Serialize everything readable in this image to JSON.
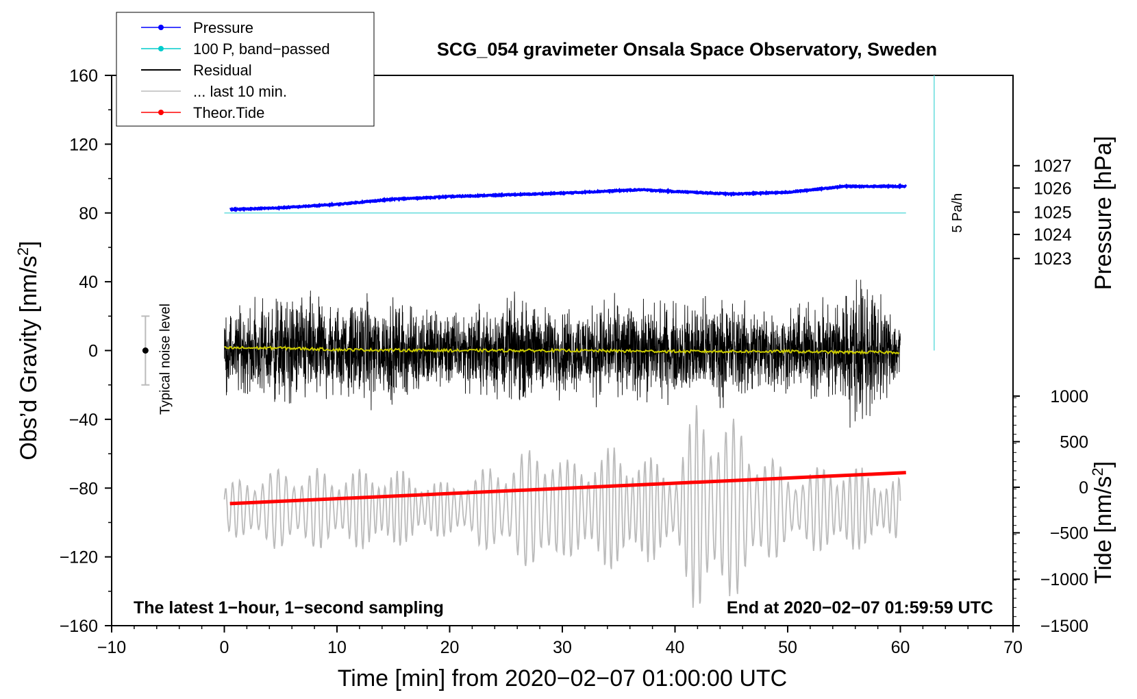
{
  "chart_data": {
    "type": "line",
    "title": "SCG_054 gravimeter Onsala Space Observatory, Sweden",
    "xlabel": "Time [min] from 2020−02−07 01:00:00 UTC",
    "xlim": [
      -10,
      70
    ],
    "xticks": [
      -10,
      0,
      10,
      20,
      30,
      40,
      50,
      60,
      70
    ],
    "xtick_labels": [
      "−10",
      "0",
      "10",
      "20",
      "30",
      "40",
      "50",
      "60",
      "70"
    ],
    "left_axis": {
      "label_main": "Obs’d Gravity [nm/s",
      "label_sup": "2",
      "label_end": "]",
      "lim": [
        -160,
        160
      ],
      "ticks": [
        160,
        120,
        80,
        40,
        0,
        -40,
        -80,
        -120,
        -160
      ],
      "tick_labels": [
        "160",
        "120",
        "80",
        "40",
        "0",
        "−40",
        "−80",
        "−120",
        "−160"
      ]
    },
    "pressure_axis": {
      "label": "Pressure [hPa]",
      "ticks": [
        1027,
        1026,
        1025,
        1024,
        1023
      ],
      "tick_labels": [
        "1027",
        "1026",
        "1025",
        "1024",
        "1023"
      ],
      "gravity_equiv": [
        107.5,
        94.5,
        80.5,
        67.5,
        53.5
      ]
    },
    "tide_axis": {
      "label_main": "Tide [nm/s",
      "label_sup": "2",
      "label_end": "]",
      "ticks": [
        1000,
        500,
        0,
        -500,
        -1000,
        -1500
      ],
      "tick_labels": [
        "1000",
        "500",
        "0",
        "−500",
        "−1000",
        "−1500"
      ],
      "gravity_equiv": [
        -26.5,
        -53,
        -79.5,
        -106,
        -133,
        -160
      ]
    },
    "legend": [
      {
        "label": "Pressure",
        "color": "#0000ff",
        "marker": true
      },
      {
        "label": "100 P, band−passed",
        "color": "#00cccc",
        "marker": true
      },
      {
        "label": "Residual",
        "color": "#000000",
        "marker": false
      },
      {
        "label": "... last 10 min.",
        "color": "#bbbbbb",
        "marker": false
      },
      {
        "label": "Theor.Tide",
        "color": "#ff0000",
        "marker": true
      }
    ],
    "series": [
      {
        "name": "Pressure",
        "color": "#0000ff",
        "x": [
          0.5,
          5,
          10,
          15,
          20,
          25,
          30,
          35,
          37,
          40,
          45,
          50,
          55,
          57,
          60.5
        ],
        "values": [
          82,
          83,
          85,
          88,
          89.5,
          90.5,
          91.5,
          93,
          93.5,
          92.5,
          91,
          92,
          95.5,
          95.5,
          95.5
        ]
      },
      {
        "name": "100 P, band-passed",
        "color": "#66dddd",
        "x": [
          0,
          60.5
        ],
        "values": [
          80,
          80
        ]
      },
      {
        "name": "Residual",
        "color": "#000000",
        "x_range": [
          0,
          60
        ],
        "envelope": {
          "x": [
            0,
            3,
            6,
            10,
            14,
            20,
            25,
            30,
            35,
            40,
            43,
            47,
            50,
            54,
            56,
            57,
            58,
            60
          ],
          "amplitude": [
            28,
            38,
            45,
            35,
            40,
            30,
            38,
            33,
            38,
            35,
            40,
            36,
            30,
            42,
            55,
            60,
            40,
            25
          ]
        }
      },
      {
        "name": "... last 10 min.",
        "color": "#bbbbbb",
        "x_range": [
          0,
          60
        ],
        "baseline": -92,
        "envelope": {
          "x": [
            0,
            3,
            6,
            10,
            14,
            20,
            27,
            29,
            30,
            35,
            40,
            42,
            44,
            46,
            50,
            55,
            58,
            60
          ],
          "amplitude": [
            14,
            22,
            25,
            22,
            25,
            15,
            35,
            42,
            28,
            38,
            25,
            65,
            58,
            48,
            22,
            28,
            20,
            18
          ]
        }
      },
      {
        "name": "Residual smoothed",
        "color": "#cccc00",
        "x": [
          0,
          5,
          10,
          20,
          30,
          40,
          50,
          55,
          60
        ],
        "values": [
          1.5,
          1.5,
          0.5,
          0,
          0,
          -0.5,
          -0.5,
          -1,
          -1
        ]
      },
      {
        "name": "Theor.Tide",
        "color": "#ff0000",
        "x": [
          0.5,
          60.5
        ],
        "values": [
          -89,
          -71
        ]
      }
    ],
    "noise_indicator": {
      "label": "Typical noise level",
      "x": -7,
      "center": 0,
      "low": -20,
      "high": 20
    },
    "rate_bar": {
      "label": "5 Pa/h",
      "x": 63,
      "from": 0,
      "to": 160
    },
    "annotations": {
      "bottom_left": "The latest 1−hour, 1−second sampling",
      "bottom_right": "End at 2020−02−07 01:59:59 UTC"
    }
  }
}
